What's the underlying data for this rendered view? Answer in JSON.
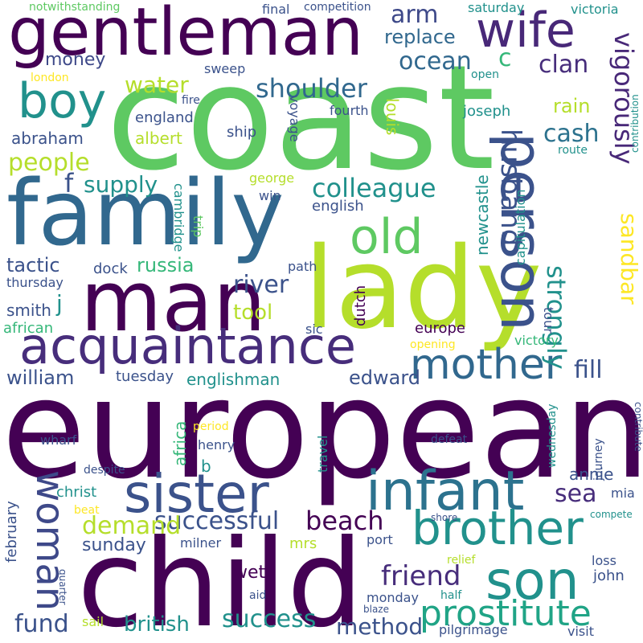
{
  "palette": {
    "background": "#ffffff",
    "dark_purple": "#440154",
    "indigo": "#3b528b",
    "teal_blue": "#31688e",
    "teal": "#21918c",
    "green": "#35b779",
    "light_green": "#5ec962",
    "yellow_green": "#b5de2b",
    "yellow": "#fde725"
  },
  "words": [
    {
      "text": "european",
      "color": "#440154"
    },
    {
      "text": "coast",
      "color": "#5ec962"
    },
    {
      "text": "child",
      "color": "#440154"
    },
    {
      "text": "family",
      "color": "#31688e"
    },
    {
      "text": "lady",
      "color": "#b5de2b"
    },
    {
      "text": "man",
      "color": "#440154"
    },
    {
      "text": "gentleman",
      "color": "#440154"
    },
    {
      "text": "acquaintance",
      "color": "#472d7b"
    },
    {
      "text": "person",
      "color": "#3b528b"
    },
    {
      "text": "infant",
      "color": "#2c728e"
    },
    {
      "text": "sister",
      "color": "#3b528b"
    },
    {
      "text": "brother",
      "color": "#21918c"
    },
    {
      "text": "son",
      "color": "#21918c"
    },
    {
      "text": "wife",
      "color": "#482878"
    },
    {
      "text": "boy",
      "color": "#21918c"
    },
    {
      "text": "old",
      "color": "#5ec962"
    },
    {
      "text": "woman",
      "color": "#3e4989"
    },
    {
      "text": "mother",
      "color": "#31688e"
    },
    {
      "text": "prostitute",
      "color": "#20a486"
    },
    {
      "text": "vigorously",
      "color": "#482878"
    },
    {
      "text": "sandbar",
      "color": "#fde725"
    },
    {
      "text": "husband",
      "color": "#3b528b"
    },
    {
      "text": "strongly",
      "color": "#21918c"
    },
    {
      "text": "colleague",
      "color": "#21918c"
    },
    {
      "text": "shoulder",
      "color": "#31688e"
    },
    {
      "text": "ocean",
      "color": "#31688e"
    },
    {
      "text": "people",
      "color": "#b5de2b"
    },
    {
      "text": "supply",
      "color": "#21918c"
    },
    {
      "text": "water",
      "color": "#b5de2b"
    },
    {
      "text": "money",
      "color": "#3e4989"
    },
    {
      "text": "arm",
      "color": "#3e4989"
    },
    {
      "text": "replace",
      "color": "#31688e"
    },
    {
      "text": "clan",
      "color": "#472d7b"
    },
    {
      "text": "c",
      "color": "#35b779"
    },
    {
      "text": "f",
      "color": "#3b528b"
    },
    {
      "text": "river",
      "color": "#3b528b"
    },
    {
      "text": "tool",
      "color": "#b5de2b"
    },
    {
      "text": "russia",
      "color": "#35b779"
    },
    {
      "text": "tactic",
      "color": "#3b528b"
    },
    {
      "text": "beach",
      "color": "#440154"
    },
    {
      "text": "successful",
      "color": "#3b528b"
    },
    {
      "text": "friend",
      "color": "#472d7b"
    },
    {
      "text": "success",
      "color": "#21918c"
    },
    {
      "text": "method",
      "color": "#3b528b"
    },
    {
      "text": "british",
      "color": "#21918c"
    },
    {
      "text": "fund",
      "color": "#3b528b"
    },
    {
      "text": "demand",
      "color": "#b5de2b"
    },
    {
      "text": "sunday",
      "color": "#3b528b"
    },
    {
      "text": "sea",
      "color": "#472d7b"
    },
    {
      "text": "edward",
      "color": "#3b528b"
    },
    {
      "text": "fill",
      "color": "#3b528b"
    },
    {
      "text": "william",
      "color": "#3b528b"
    },
    {
      "text": "englishman",
      "color": "#21918c"
    },
    {
      "text": "tuesday",
      "color": "#3b528b"
    },
    {
      "text": "africa",
      "color": "#35b779"
    },
    {
      "text": "cash",
      "color": "#2c728e"
    },
    {
      "text": "rain",
      "color": "#b5de2b"
    },
    {
      "text": "louis",
      "color": "#b5de2b"
    },
    {
      "text": "joseph",
      "color": "#21918c"
    },
    {
      "text": "newcastle",
      "color": "#21918c"
    },
    {
      "text": "capitulation",
      "color": "#21918c"
    },
    {
      "text": "english",
      "color": "#3b528b"
    },
    {
      "text": "cambridge",
      "color": "#21918c"
    },
    {
      "text": "trip",
      "color": "#5ec962"
    },
    {
      "text": "george",
      "color": "#b5de2b"
    },
    {
      "text": "win",
      "color": "#3b528b"
    },
    {
      "text": "path",
      "color": "#3b528b"
    },
    {
      "text": "dutch",
      "color": "#440154"
    },
    {
      "text": "europe",
      "color": "#440154"
    },
    {
      "text": "tour",
      "color": "#3b528b"
    },
    {
      "text": "victory",
      "color": "#35b779"
    },
    {
      "text": "opening",
      "color": "#fde725"
    },
    {
      "text": "sic",
      "color": "#3b528b"
    },
    {
      "text": "smith",
      "color": "#3b528b"
    },
    {
      "text": "j",
      "color": "#21918c"
    },
    {
      "text": "african",
      "color": "#35b779"
    },
    {
      "text": "thursday",
      "color": "#3b528b"
    },
    {
      "text": "dock",
      "color": "#3b528b"
    },
    {
      "text": "abraham",
      "color": "#3b528b"
    },
    {
      "text": "england",
      "color": "#3b528b"
    },
    {
      "text": "albert",
      "color": "#b5de2b"
    },
    {
      "text": "ship",
      "color": "#3b528b"
    },
    {
      "text": "fire",
      "color": "#3b528b"
    },
    {
      "text": "voyage",
      "color": "#3b528b"
    },
    {
      "text": "fourth",
      "color": "#3b528b"
    },
    {
      "text": "london",
      "color": "#fde725"
    },
    {
      "text": "sweep",
      "color": "#3b528b"
    },
    {
      "text": "open",
      "color": "#21918c"
    },
    {
      "text": "route",
      "color": "#21918c"
    },
    {
      "text": "contribution",
      "color": "#21918c"
    },
    {
      "text": "notwithstanding",
      "color": "#5ec962"
    },
    {
      "text": "final",
      "color": "#3b528b"
    },
    {
      "text": "competition",
      "color": "#3b528b"
    },
    {
      "text": "saturday",
      "color": "#21918c"
    },
    {
      "text": "victoria",
      "color": "#21918c"
    },
    {
      "text": "wharf",
      "color": "#3b528b"
    },
    {
      "text": "period",
      "color": "#fde725"
    },
    {
      "text": "henry",
      "color": "#3b528b"
    },
    {
      "text": "b",
      "color": "#21918c"
    },
    {
      "text": "travel",
      "color": "#21918c"
    },
    {
      "text": "defeat",
      "color": "#3b528b"
    },
    {
      "text": "wednesday",
      "color": "#21918c"
    },
    {
      "text": "journey",
      "color": "#3b528b"
    },
    {
      "text": "contribute",
      "color": "#3b528b"
    },
    {
      "text": "despite",
      "color": "#3b528b"
    },
    {
      "text": "christ",
      "color": "#21918c"
    },
    {
      "text": "february",
      "color": "#3b528b"
    },
    {
      "text": "annie",
      "color": "#3b528b"
    },
    {
      "text": "mia",
      "color": "#3b528b"
    },
    {
      "text": "beat",
      "color": "#fde725"
    },
    {
      "text": "shore",
      "color": "#3b528b"
    },
    {
      "text": "compete",
      "color": "#21918c"
    },
    {
      "text": "mrs",
      "color": "#b5de2b"
    },
    {
      "text": "milner",
      "color": "#3b528b"
    },
    {
      "text": "port",
      "color": "#3b528b"
    },
    {
      "text": "relief",
      "color": "#b5de2b"
    },
    {
      "text": "wet",
      "color": "#440154"
    },
    {
      "text": "loss",
      "color": "#3b528b"
    },
    {
      "text": "john",
      "color": "#3b528b"
    },
    {
      "text": "quarter",
      "color": "#3b528b"
    },
    {
      "text": "aid",
      "color": "#3b528b"
    },
    {
      "text": "monday",
      "color": "#3b528b"
    },
    {
      "text": "half",
      "color": "#21918c"
    },
    {
      "text": "blaze",
      "color": "#3b528b"
    },
    {
      "text": "sail",
      "color": "#b5de2b"
    },
    {
      "text": "pilgrimage",
      "color": "#3b528b"
    },
    {
      "text": "visit",
      "color": "#3b528b"
    }
  ]
}
